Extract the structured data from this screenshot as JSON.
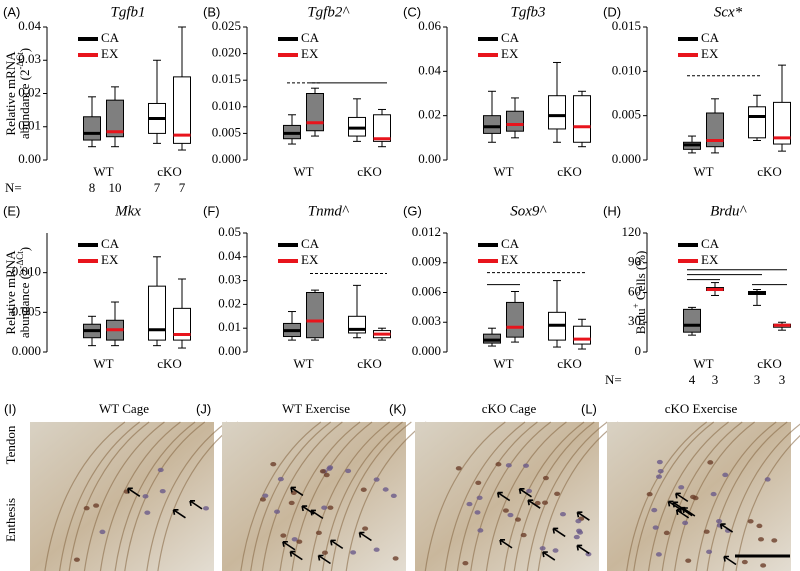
{
  "chart_data": [
    {
      "type": "box",
      "panel": "(A)",
      "title": "Tgfb1",
      "y_label": {
        "line1": "Relative mRNA",
        "line2": "abundance (2",
        "sup": "-ΔCt",
        "close": ")"
      },
      "categories": [
        "WT",
        "cKO"
      ],
      "box_fills": [
        "#7f7f7f",
        "#ffffff"
      ],
      "series": [
        {
          "name": "CA",
          "color": "#000000",
          "boxes": [
            {
              "min": 0.004,
              "q1": 0.006,
              "median": 0.008,
              "q3": 0.013,
              "max": 0.019
            },
            {
              "min": 0.005,
              "q1": 0.008,
              "median": 0.0125,
              "q3": 0.017,
              "max": 0.03
            }
          ]
        },
        {
          "name": "EX",
          "color": "#e8141c",
          "boxes": [
            {
              "min": 0.004,
              "q1": 0.007,
              "median": 0.0085,
              "q3": 0.018,
              "max": 0.022
            },
            {
              "min": 0.003,
              "q1": 0.005,
              "median": 0.0075,
              "q3": 0.025,
              "max": 0.04
            }
          ]
        }
      ],
      "ylim": [
        0,
        0.04
      ],
      "yticks": [
        {
          "value": 0,
          "label": "0.00"
        },
        {
          "value": 0.01,
          "label": "0.01"
        },
        {
          "value": 0.02,
          "label": "0.02"
        },
        {
          "value": 0.03,
          "label": "0.03"
        },
        {
          "value": 0.04,
          "label": "0.04"
        }
      ],
      "n_label": "N=",
      "n": [
        8,
        10,
        7,
        7
      ],
      "significance": []
    },
    {
      "type": "box",
      "panel": "(B)",
      "title": "Tgfb2^",
      "categories": [
        "WT",
        "cKO"
      ],
      "box_fills": [
        "#7f7f7f",
        "#ffffff"
      ],
      "series": [
        {
          "name": "CA",
          "color": "#000000",
          "boxes": [
            {
              "min": 0.003,
              "q1": 0.004,
              "median": 0.005,
              "q3": 0.0065,
              "max": 0.0085
            },
            {
              "min": 0.0035,
              "q1": 0.0045,
              "median": 0.006,
              "q3": 0.008,
              "max": 0.0115
            }
          ]
        },
        {
          "name": "EX",
          "color": "#e8141c",
          "boxes": [
            {
              "min": 0.0045,
              "q1": 0.0055,
              "median": 0.007,
              "q3": 0.0125,
              "max": 0.0135
            },
            {
              "min": 0.0025,
              "q1": 0.0035,
              "median": 0.004,
              "q3": 0.0085,
              "max": 0.0095
            }
          ]
        }
      ],
      "ylim": [
        0,
        0.025
      ],
      "yticks": [
        {
          "value": 0,
          "label": "0.000"
        },
        {
          "value": 0.005,
          "label": "0.005"
        },
        {
          "value": 0.01,
          "label": "0.010"
        },
        {
          "value": 0.015,
          "label": "0.015"
        },
        {
          "value": 0.02,
          "label": "0.020"
        },
        {
          "value": 0.025,
          "label": "0.025"
        }
      ],
      "significance": [
        {
          "from": 0,
          "to": 1,
          "y": 0.0145,
          "style": "dashed"
        },
        {
          "from": 1,
          "to": 3,
          "y": 0.0145,
          "style": "solid"
        }
      ]
    },
    {
      "type": "box",
      "panel": "(C)",
      "title": "Tgfb3",
      "categories": [
        "WT",
        "cKO"
      ],
      "box_fills": [
        "#7f7f7f",
        "#ffffff"
      ],
      "series": [
        {
          "name": "CA",
          "color": "#000000",
          "boxes": [
            {
              "min": 0.008,
              "q1": 0.012,
              "median": 0.015,
              "q3": 0.02,
              "max": 0.031
            },
            {
              "min": 0.008,
              "q1": 0.014,
              "median": 0.02,
              "q3": 0.029,
              "max": 0.044
            }
          ]
        },
        {
          "name": "EX",
          "color": "#e8141c",
          "boxes": [
            {
              "min": 0.01,
              "q1": 0.013,
              "median": 0.016,
              "q3": 0.022,
              "max": 0.028
            },
            {
              "min": 0.006,
              "q1": 0.008,
              "median": 0.015,
              "q3": 0.029,
              "max": 0.031
            }
          ]
        }
      ],
      "ylim": [
        0,
        0.06
      ],
      "yticks": [
        {
          "value": 0,
          "label": "0.00"
        },
        {
          "value": 0.02,
          "label": "0.02"
        },
        {
          "value": 0.04,
          "label": "0.04"
        },
        {
          "value": 0.06,
          "label": "0.06"
        }
      ],
      "significance": []
    },
    {
      "type": "box",
      "panel": "(D)",
      "title": "Scx*",
      "categories": [
        "WT",
        "cKO"
      ],
      "box_fills": [
        "#7f7f7f",
        "#ffffff"
      ],
      "series": [
        {
          "name": "CA",
          "color": "#000000",
          "boxes": [
            {
              "min": 0.0008,
              "q1": 0.0012,
              "median": 0.0017,
              "q3": 0.002,
              "max": 0.0027
            },
            {
              "min": 0.0022,
              "q1": 0.0025,
              "median": 0.0049,
              "q3": 0.006,
              "max": 0.0073
            }
          ]
        },
        {
          "name": "EX",
          "color": "#e8141c",
          "boxes": [
            {
              "min": 0.0008,
              "q1": 0.0015,
              "median": 0.0022,
              "q3": 0.0053,
              "max": 0.0069
            },
            {
              "min": 0.001,
              "q1": 0.0018,
              "median": 0.0025,
              "q3": 0.0065,
              "max": 0.0107
            }
          ]
        }
      ],
      "ylim": [
        0,
        0.015
      ],
      "yticks": [
        {
          "value": 0,
          "label": "0.000"
        },
        {
          "value": 0.005,
          "label": "0.005"
        },
        {
          "value": 0.01,
          "label": "0.010"
        },
        {
          "value": 0.015,
          "label": "0.015"
        }
      ],
      "significance": [
        {
          "from": 0,
          "to": 2,
          "y": 0.0095,
          "style": "dashed"
        }
      ]
    },
    {
      "type": "box",
      "panel": "(E)",
      "title": "Mkx",
      "y_label": {
        "line1": "Relative mRNA",
        "line2": "abundance (2",
        "sup": "-ΔCt",
        "close": ")"
      },
      "categories": [
        "WT",
        "cKO"
      ],
      "box_fills": [
        "#7f7f7f",
        "#ffffff"
      ],
      "series": [
        {
          "name": "CA",
          "color": "#000000",
          "boxes": [
            {
              "min": 0.0008,
              "q1": 0.0018,
              "median": 0.0027,
              "q3": 0.0035,
              "max": 0.0045
            },
            {
              "min": 0.0008,
              "q1": 0.0015,
              "median": 0.0028,
              "q3": 0.0083,
              "max": 0.012
            }
          ]
        },
        {
          "name": "EX",
          "color": "#e8141c",
          "boxes": [
            {
              "min": 0.0008,
              "q1": 0.0015,
              "median": 0.0028,
              "q3": 0.004,
              "max": 0.0063
            },
            {
              "min": 0.0005,
              "q1": 0.0015,
              "median": 0.0022,
              "q3": 0.0055,
              "max": 0.0092
            }
          ]
        }
      ],
      "ylim": [
        0,
        0.015
      ],
      "yticks": [
        {
          "value": 0,
          "label": "0.000"
        },
        {
          "value": 0.005,
          "label": "0.005"
        },
        {
          "value": 0.01,
          "label": "0.010"
        }
      ],
      "significance": []
    },
    {
      "type": "box",
      "panel": "(F)",
      "title": "Tnmd^",
      "categories": [
        "WT",
        "cKO"
      ],
      "box_fills": [
        "#7f7f7f",
        "#ffffff"
      ],
      "series": [
        {
          "name": "CA",
          "color": "#000000",
          "boxes": [
            {
              "min": 0.005,
              "q1": 0.0065,
              "median": 0.009,
              "q3": 0.012,
              "max": 0.017
            },
            {
              "min": 0.006,
              "q1": 0.008,
              "median": 0.0095,
              "q3": 0.015,
              "max": 0.028
            }
          ]
        },
        {
          "name": "EX",
          "color": "#e8141c",
          "boxes": [
            {
              "min": 0.005,
              "q1": 0.006,
              "median": 0.013,
              "q3": 0.025,
              "max": 0.026
            },
            {
              "min": 0.005,
              "q1": 0.006,
              "median": 0.0075,
              "q3": 0.009,
              "max": 0.01
            }
          ]
        }
      ],
      "ylim": [
        0,
        0.05
      ],
      "yticks": [
        {
          "value": 0,
          "label": "0.00"
        },
        {
          "value": 0.01,
          "label": "0.01"
        },
        {
          "value": 0.02,
          "label": "0.02"
        },
        {
          "value": 0.03,
          "label": "0.03"
        },
        {
          "value": 0.04,
          "label": "0.04"
        },
        {
          "value": 0.05,
          "label": "0.05"
        }
      ],
      "significance": [
        {
          "from": 1,
          "to": 3,
          "y": 0.033,
          "style": "dashed"
        }
      ]
    },
    {
      "type": "box",
      "panel": "(G)",
      "title": "Sox9^",
      "categories": [
        "WT",
        "cKO"
      ],
      "box_fills": [
        "#7f7f7f",
        "#ffffff"
      ],
      "series": [
        {
          "name": "CA",
          "color": "#000000",
          "boxes": [
            {
              "min": 0.0006,
              "q1": 0.0009,
              "median": 0.0012,
              "q3": 0.0018,
              "max": 0.0024
            },
            {
              "min": 0.0005,
              "q1": 0.0012,
              "median": 0.0027,
              "q3": 0.004,
              "max": 0.0072
            }
          ]
        },
        {
          "name": "EX",
          "color": "#e8141c",
          "boxes": [
            {
              "min": 0.001,
              "q1": 0.0015,
              "median": 0.0025,
              "q3": 0.005,
              "max": 0.0061
            },
            {
              "min": 0.0003,
              "q1": 0.0008,
              "median": 0.0013,
              "q3": 0.0026,
              "max": 0.0033
            }
          ]
        }
      ],
      "ylim": [
        0,
        0.012
      ],
      "yticks": [
        {
          "value": 0,
          "label": "0.000"
        },
        {
          "value": 0.003,
          "label": "0.003"
        },
        {
          "value": 0.006,
          "label": "0.006"
        },
        {
          "value": 0.009,
          "label": "0.009"
        },
        {
          "value": 0.012,
          "label": "0.012"
        }
      ],
      "significance": [
        {
          "from": 0,
          "to": 3,
          "y": 0.008,
          "style": "dashed"
        },
        {
          "from": 0,
          "to": 1,
          "y": 0.0068,
          "style": "solid"
        }
      ]
    },
    {
      "type": "box",
      "panel": "(H)",
      "title": "Brdu^",
      "y_label": {
        "line1": "",
        "line2": "Brdu",
        "sup": "+",
        "close": " Cells (%)"
      },
      "categories": [
        "WT",
        "cKO"
      ],
      "box_fills": [
        "#7f7f7f",
        "#ffffff"
      ],
      "series": [
        {
          "name": "CA",
          "color": "#000000",
          "boxes": [
            {
              "min": 17,
              "q1": 20,
              "median": 27,
              "q3": 43,
              "max": 45
            },
            {
              "min": 47,
              "q1": 58,
              "median": 60,
              "q3": 61,
              "max": 63
            }
          ]
        },
        {
          "name": "EX",
          "color": "#e8141c",
          "boxes": [
            {
              "min": 57,
              "q1": 62,
              "median": 63,
              "q3": 65,
              "max": 70
            },
            {
              "min": 22,
              "q1": 25,
              "median": 27,
              "q3": 28,
              "max": 30
            }
          ]
        }
      ],
      "ylim": [
        0,
        120
      ],
      "yticks": [
        0,
        30,
        60,
        90,
        120
      ],
      "n_label": "N=",
      "n": [
        4,
        3,
        3,
        3
      ],
      "significance": [
        {
          "from": 0,
          "to": 3,
          "y": 83,
          "style": "solid"
        },
        {
          "from": 0,
          "to": 2,
          "y": 78,
          "style": "solid"
        },
        {
          "from": 0,
          "to": 1,
          "y": 73,
          "style": "solid"
        },
        {
          "from": 2,
          "to": 3,
          "y": 68,
          "style": "solid"
        }
      ]
    }
  ],
  "image_panels": [
    {
      "label": "(I)",
      "title": "WT Cage"
    },
    {
      "label": "(J)",
      "title": "WT Exercise"
    },
    {
      "label": "(K)",
      "title": "cKO Cage"
    },
    {
      "label": "(L)",
      "title": "cKO Exercise"
    }
  ],
  "side_labels": [
    "Tendon",
    "Enthesis"
  ]
}
